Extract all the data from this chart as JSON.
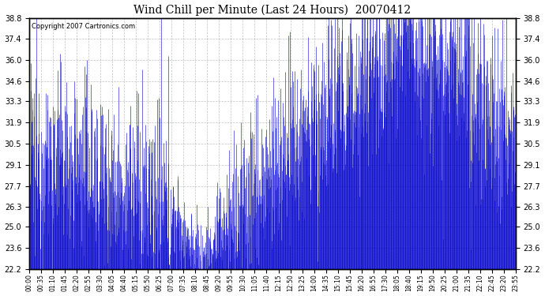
{
  "title": "Wind Chill per Minute (Last 24 Hours)  20070412",
  "copyright": "Copyright 2007 Cartronics.com",
  "line_color": "#0000CC",
  "background_color": "#FFFFFF",
  "plot_bg_color": "#FFFFFF",
  "grid_color": "#999999",
  "ylim": [
    22.2,
    38.8
  ],
  "yticks": [
    22.2,
    23.6,
    25.0,
    26.3,
    27.7,
    29.1,
    30.5,
    31.9,
    33.3,
    34.6,
    36.0,
    37.4,
    38.8
  ],
  "xtick_labels": [
    "00:00",
    "00:35",
    "01:10",
    "01:45",
    "02:20",
    "02:55",
    "03:30",
    "04:05",
    "04:40",
    "05:15",
    "05:50",
    "06:25",
    "07:00",
    "07:35",
    "08:10",
    "08:45",
    "09:20",
    "09:55",
    "10:30",
    "11:05",
    "11:40",
    "12:15",
    "12:50",
    "13:25",
    "14:00",
    "14:35",
    "15:10",
    "15:45",
    "16:20",
    "16:55",
    "17:30",
    "18:05",
    "18:40",
    "19:15",
    "19:50",
    "20:25",
    "21:00",
    "21:35",
    "22:10",
    "22:45",
    "23:20",
    "23:55"
  ],
  "num_minutes": 1440,
  "figwidth": 6.9,
  "figheight": 3.75,
  "dpi": 100
}
